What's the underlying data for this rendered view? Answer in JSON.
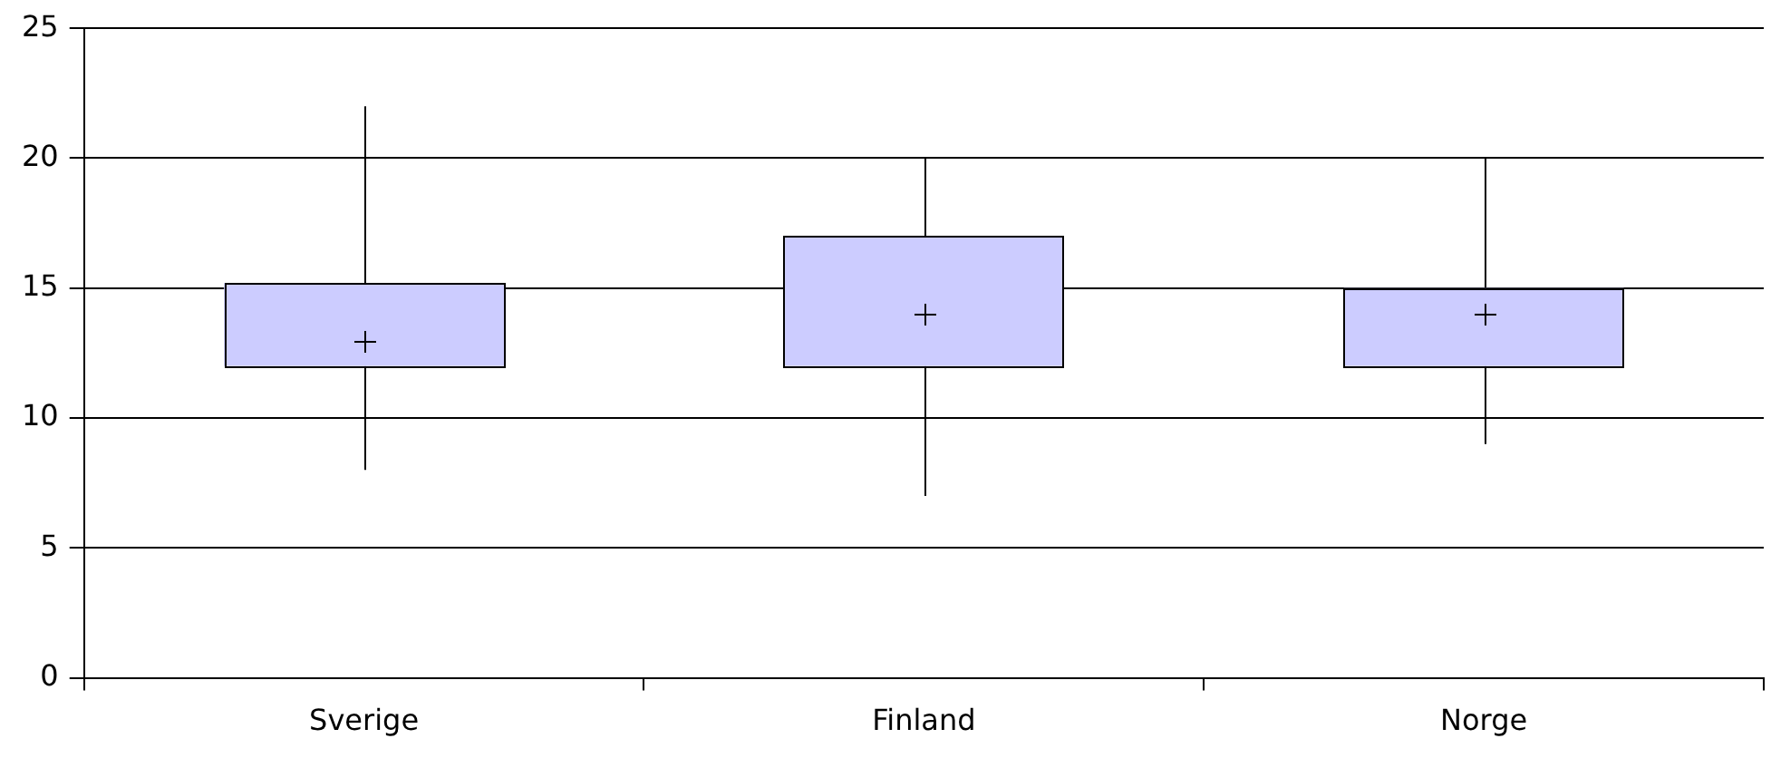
{
  "chart_data": {
    "type": "box",
    "categories": [
      "Sverige",
      "Finland",
      "Norge"
    ],
    "series": [
      {
        "color": "#ccccff",
        "boxes": [
          {
            "low": 8,
            "q1": 12,
            "median": 13,
            "q3": 15.2,
            "high": 22
          },
          {
            "low": 7,
            "q1": 12,
            "median": 14,
            "q3": 17,
            "high": 20
          },
          {
            "low": 9,
            "q1": 12,
            "median": 14,
            "q3": 15,
            "high": 20
          }
        ]
      }
    ],
    "ylim": [
      0,
      25
    ],
    "yticks": [
      0,
      5,
      10,
      15,
      20,
      25
    ],
    "grid": "y",
    "marker": "cross",
    "legend": false
  }
}
